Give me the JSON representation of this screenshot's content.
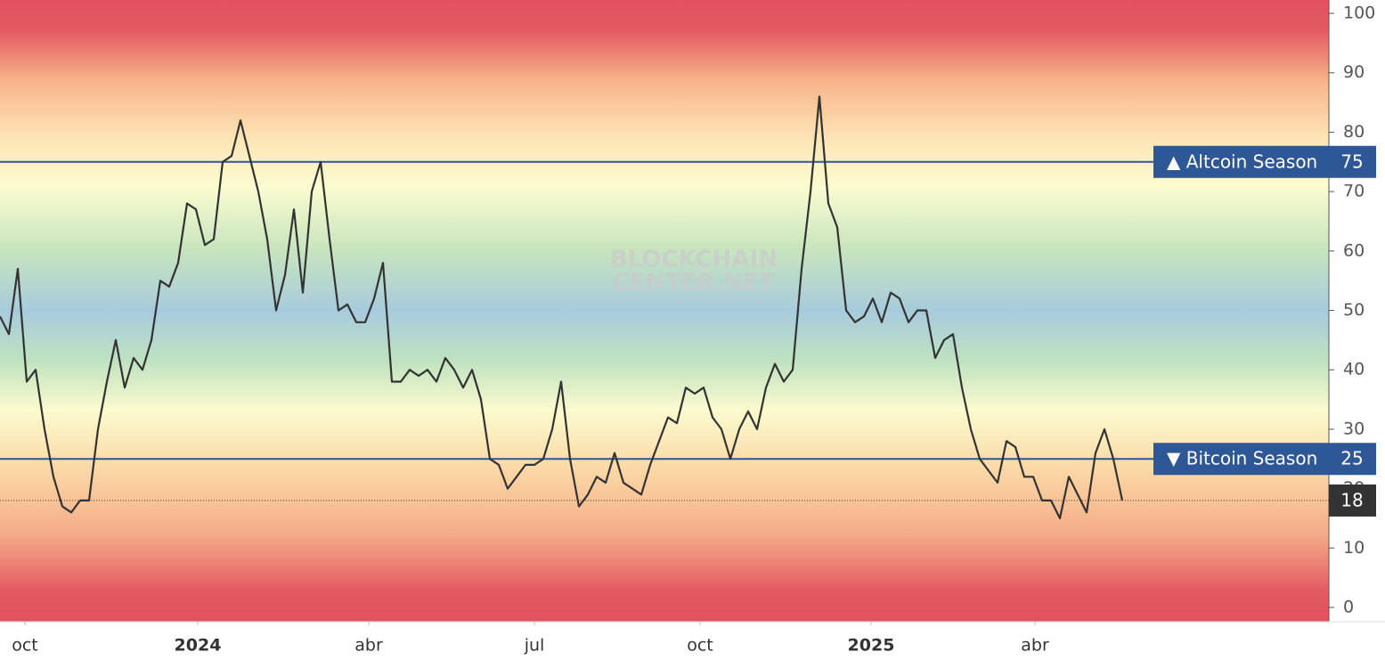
{
  "chart_data": {
    "type": "line",
    "series": [
      {
        "color": "#333333",
        "values": [
          49,
          46,
          57,
          38,
          40,
          30,
          22,
          17,
          16,
          18,
          18,
          30,
          38,
          45,
          37,
          42,
          40,
          45,
          55,
          54,
          58,
          68,
          67,
          61,
          62,
          75,
          76,
          82,
          76,
          70,
          62,
          50,
          56,
          67,
          53,
          70,
          75,
          62,
          50,
          51,
          48,
          48,
          52,
          58,
          38,
          38,
          40,
          39,
          40,
          38,
          42,
          40,
          37,
          40,
          35,
          25,
          24,
          20,
          22,
          24,
          24,
          25,
          30,
          38,
          25,
          17,
          19,
          22,
          21,
          26,
          21,
          20,
          19,
          24,
          28,
          32,
          31,
          37,
          36,
          37,
          32,
          30,
          25,
          30,
          33,
          30,
          37,
          41,
          38,
          40,
          57,
          70,
          86,
          68,
          64,
          50,
          48,
          49,
          52,
          48,
          53,
          52,
          48,
          50,
          50,
          42,
          45,
          46,
          37,
          30,
          25,
          23,
          21,
          28,
          27,
          22,
          22,
          18,
          18,
          15,
          22,
          19,
          16,
          26,
          30,
          25,
          18
        ]
      }
    ],
    "xlim": [
      0,
      149.2
    ],
    "xticks": [
      {
        "value": 2.8,
        "label": "oct"
      },
      {
        "value": 22.2,
        "label": "2024",
        "bold": true
      },
      {
        "value": 41.4,
        "label": "abr"
      },
      {
        "value": 60.0,
        "label": "jul"
      },
      {
        "value": 78.6,
        "label": "oct"
      },
      {
        "value": 97.8,
        "label": "2025",
        "bold": true
      },
      {
        "value": 116.2,
        "label": "abr"
      }
    ],
    "ylim": [
      -2.4,
      102.25
    ],
    "yticks": [
      0,
      10,
      20,
      30,
      40,
      50,
      60,
      70,
      80,
      90,
      100
    ],
    "reference_lines": [
      {
        "label": "▲ Altcoin Season",
        "value": 75,
        "color": "#2d5796"
      },
      {
        "label": "▼ Bitcoin Season",
        "value": 25,
        "color": "#2d5796"
      }
    ],
    "watermark": [
      "BLOCKCHAIN",
      "CENTER.NET"
    ]
  }
}
